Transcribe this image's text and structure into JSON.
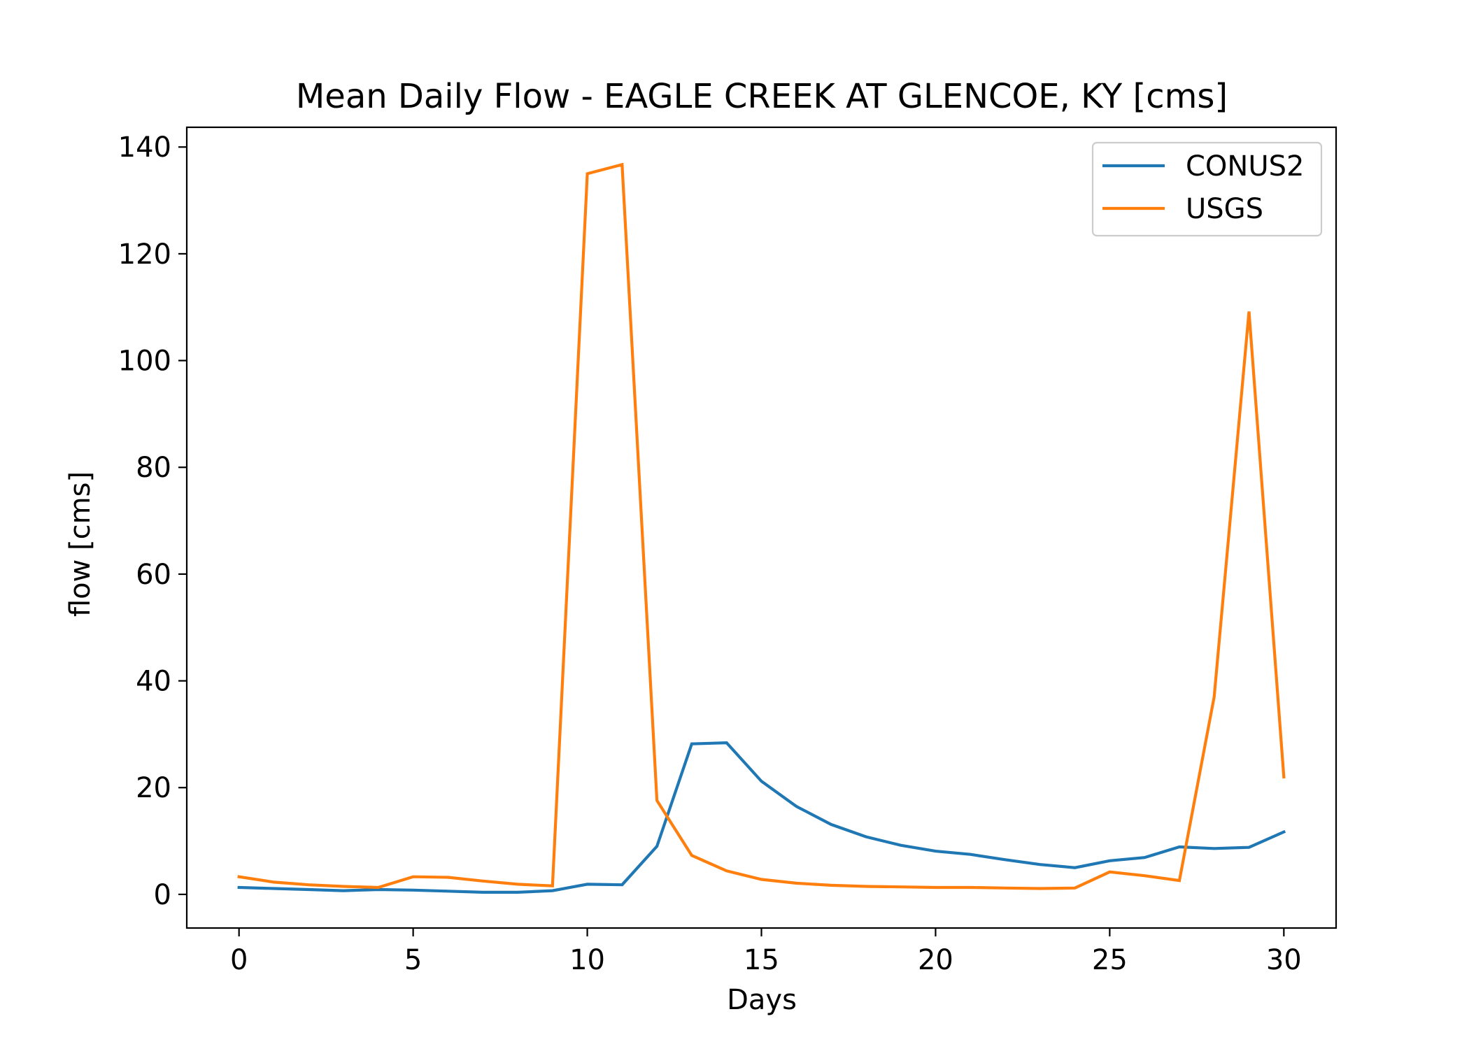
{
  "chart_data": {
    "type": "line",
    "title": "Mean Daily Flow - EAGLE CREEK AT GLENCOE, KY [cms]",
    "xlabel": "Days",
    "ylabel": "flow [cms]",
    "xlim": [
      -1.5,
      31.5
    ],
    "ylim": [
      -6.3,
      143.7
    ],
    "xticks": [
      0,
      5,
      10,
      15,
      20,
      25,
      30
    ],
    "xtick_labels": [
      "0",
      "5",
      "10",
      "15",
      "20",
      "25",
      "30"
    ],
    "yticks": [
      0,
      20,
      40,
      60,
      80,
      100,
      120,
      140
    ],
    "ytick_labels": [
      "0",
      "20",
      "40",
      "60",
      "80",
      "100",
      "120",
      "140"
    ],
    "grid": false,
    "legend_position": "upper right",
    "x": [
      0,
      1,
      2,
      3,
      4,
      5,
      6,
      7,
      8,
      9,
      10,
      11,
      12,
      13,
      14,
      15,
      16,
      17,
      18,
      19,
      20,
      21,
      22,
      23,
      24,
      25,
      26,
      27,
      28,
      29,
      30
    ],
    "series": [
      {
        "name": "CONUS2",
        "color": "#1f77b4",
        "values": [
          1.3,
          1.1,
          0.9,
          0.7,
          0.9,
          0.8,
          0.6,
          0.4,
          0.4,
          0.7,
          1.9,
          1.8,
          9.0,
          28.2,
          28.4,
          21.2,
          16.5,
          13.1,
          10.8,
          9.2,
          8.1,
          7.5,
          6.5,
          5.6,
          5.0,
          6.3,
          6.9,
          8.9,
          8.6,
          8.8,
          11.7
        ]
      },
      {
        "name": "USGS",
        "color": "#ff7f0e",
        "values": [
          3.3,
          2.3,
          1.8,
          1.5,
          1.3,
          3.3,
          3.2,
          2.5,
          1.9,
          1.6,
          135.0,
          136.7,
          17.6,
          7.3,
          4.4,
          2.8,
          2.1,
          1.7,
          1.5,
          1.4,
          1.3,
          1.3,
          1.2,
          1.1,
          1.2,
          4.2,
          3.5,
          2.6,
          37.0,
          109.2,
          22.0
        ]
      }
    ]
  }
}
